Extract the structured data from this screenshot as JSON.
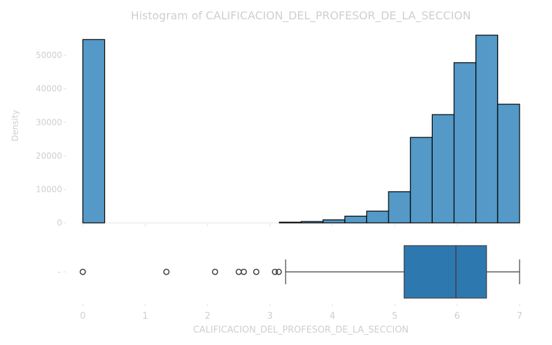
{
  "chart_data": [
    {
      "type": "bar",
      "title": "Histogram of CALIFICACION_DEL_PROFESOR_DE_LA_SECCION",
      "xlabel": "",
      "ylabel": "Density",
      "xlim": [
        0,
        7
      ],
      "ylim": [
        0,
        56000
      ],
      "bin_width": 0.35,
      "bins": [
        {
          "x0": 0.0,
          "x1": 0.35,
          "value": 54700
        },
        {
          "x0": 3.15,
          "x1": 3.5,
          "value": 200
        },
        {
          "x0": 3.5,
          "x1": 3.85,
          "value": 400
        },
        {
          "x0": 3.85,
          "x1": 4.2,
          "value": 900
        },
        {
          "x0": 4.2,
          "x1": 4.55,
          "value": 2000
        },
        {
          "x0": 4.55,
          "x1": 4.9,
          "value": 3500
        },
        {
          "x0": 4.9,
          "x1": 5.25,
          "value": 9300
        },
        {
          "x0": 5.25,
          "x1": 5.6,
          "value": 25500
        },
        {
          "x0": 5.6,
          "x1": 5.95,
          "value": 32300
        },
        {
          "x0": 5.95,
          "x1": 6.3,
          "value": 47800
        },
        {
          "x0": 6.3,
          "x1": 6.65,
          "value": 56000
        },
        {
          "x0": 6.65,
          "x1": 7.0,
          "value": 35400
        }
      ],
      "yticks": [
        "0",
        "10000",
        "20000",
        "30000",
        "40000",
        "50000"
      ],
      "grid": false,
      "colors": {
        "bar": "#5499c7",
        "edge": "#000000"
      }
    },
    {
      "type": "box",
      "xlabel": "CALIFICACION_DEL_PROFESOR_DE_LA_SECCION",
      "xticks": [
        "0",
        "1",
        "2",
        "3",
        "4",
        "5",
        "6",
        "7"
      ],
      "xlim": [
        0,
        7
      ],
      "ytick": "-",
      "whisker_low": 3.25,
      "q1": 5.15,
      "median": 5.98,
      "q3": 6.47,
      "whisker_high": 7.0,
      "outliers": [
        0.0,
        1.34,
        2.12,
        2.5,
        2.58,
        2.78,
        3.08,
        3.14
      ],
      "colors": {
        "box": "#2e78b0",
        "line": "#3f3f3f"
      }
    }
  ]
}
